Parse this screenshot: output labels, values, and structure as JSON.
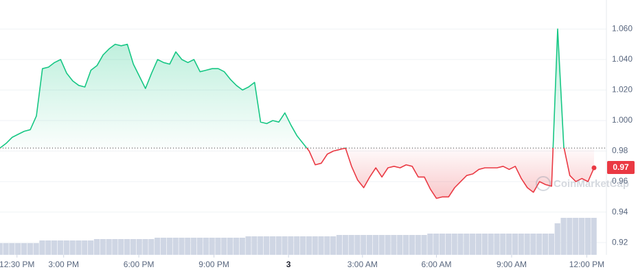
{
  "chart_data": {
    "type": "line",
    "values": [
      0.982,
      0.985,
      0.989,
      0.991,
      0.993,
      0.994,
      1.003,
      1.034,
      1.035,
      1.038,
      1.04,
      1.031,
      1.026,
      1.023,
      1.022,
      1.033,
      1.036,
      1.043,
      1.047,
      1.05,
      1.049,
      1.05,
      1.037,
      1.029,
      1.021,
      1.031,
      1.04,
      1.038,
      1.037,
      1.045,
      1.04,
      1.038,
      1.04,
      1.032,
      1.033,
      1.034,
      1.034,
      1.032,
      1.027,
      1.023,
      1.02,
      1.022,
      1.025,
      0.999,
      0.998,
      1.0,
      0.999,
      1.005,
      0.997,
      0.99,
      0.985,
      0.98,
      0.971,
      0.972,
      0.978,
      0.98,
      0.981,
      0.982,
      0.97,
      0.961,
      0.956,
      0.963,
      0.969,
      0.963,
      0.969,
      0.97,
      0.969,
      0.971,
      0.97,
      0.963,
      0.963,
      0.955,
      0.949,
      0.95,
      0.95,
      0.956,
      0.96,
      0.964,
      0.965,
      0.968,
      0.969,
      0.969,
      0.969,
      0.97,
      0.968,
      0.97,
      0.962,
      0.956,
      0.953,
      0.96,
      0.958,
      0.957,
      1.06,
      0.983,
      0.964,
      0.96,
      0.962,
      0.96,
      0.969
    ],
    "volume": [
      17,
      17,
      17,
      17,
      17,
      17,
      17,
      21,
      21,
      21,
      21,
      21,
      21,
      21,
      21,
      21,
      23,
      23,
      23,
      23,
      23,
      23,
      23,
      23,
      23,
      23,
      25,
      25,
      25,
      25,
      25,
      25,
      25,
      25,
      25,
      25,
      25,
      25,
      25,
      25,
      25,
      27,
      27,
      27,
      27,
      27,
      27,
      27,
      27,
      27,
      27,
      27,
      27,
      27,
      27,
      27,
      29,
      29,
      29,
      29,
      29,
      29,
      29,
      29,
      29,
      29,
      29,
      29,
      29,
      29,
      29,
      31,
      31,
      31,
      31,
      31,
      31,
      31,
      31,
      31,
      31,
      31,
      31,
      31,
      31,
      31,
      31,
      31,
      31,
      31,
      31,
      31,
      46,
      54,
      54,
      54,
      54,
      54,
      54
    ],
    "xlim": [
      0,
      98
    ],
    "xticks": [
      {
        "value": 2.8,
        "label": "12:30 PM"
      },
      {
        "value": 10.5,
        "label": "3:00 PM"
      },
      {
        "value": 22.9,
        "label": "6:00 PM"
      },
      {
        "value": 35.3,
        "label": "9:00 PM"
      },
      {
        "value": 47.6,
        "label": "3"
      },
      {
        "value": 59.8,
        "label": "3:00 AM"
      },
      {
        "value": 72,
        "label": "6:00 AM"
      },
      {
        "value": 84.4,
        "label": "9:00 AM"
      },
      {
        "value": 96.8,
        "label": "12:00 PM"
      }
    ],
    "ylim": [
      0.912,
      1.079
    ],
    "yticks": [
      0.92,
      0.94,
      0.96,
      0.98,
      {
        "value": 1.0,
        "label": "1.000"
      },
      {
        "value": 1.02,
        "label": "1.020"
      },
      {
        "value": 1.04,
        "label": "1.040"
      },
      {
        "value": 1.06,
        "label": "1.060"
      }
    ],
    "baseline": 0.982,
    "current_label": "0.97",
    "watermark": "CoinMarketCap",
    "up_color": "#16c784",
    "down_color": "#ea3943",
    "volume_color": "#cfd6e4",
    "grid": true
  }
}
